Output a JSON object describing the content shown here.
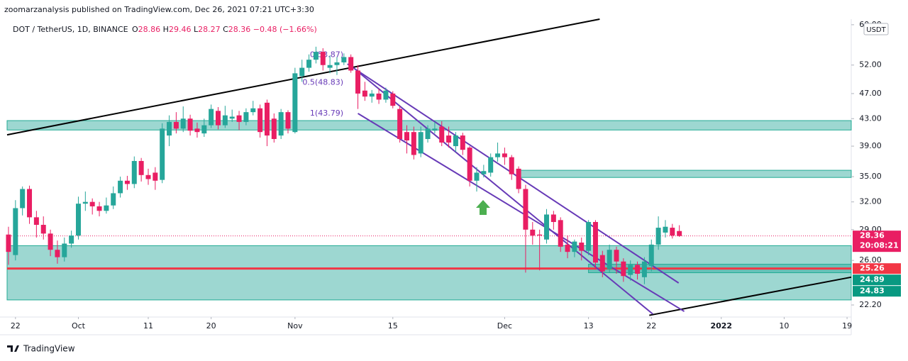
{
  "publisher_line": "zoomarzanalysis published on TradingView.com, Dec 26, 2021 07:21 UTC+3:30",
  "footer": "TradingView",
  "chart_data": {
    "type": "candlestick",
    "title": "DOT / TetherUS, 1D, BINANCE",
    "ohlc_header": [
      {
        "label": "O",
        "value": 28.86
      },
      {
        "label": "H",
        "value": 29.46
      },
      {
        "label": "L",
        "value": 28.27
      },
      {
        "label": "C",
        "value": 28.36
      }
    ],
    "change": {
      "value": -0.48,
      "label": "−0.48"
    },
    "change_pct": {
      "value": -1.66,
      "label": "(−1.66%)"
    },
    "currency": "USDT",
    "up_color": "#26a69a",
    "down_color": "#e91e63",
    "log_scale": true,
    "xlim": [
      -1.2,
      119.6
    ],
    "ylim": [
      21.27,
      61.2
    ],
    "xticks": [
      {
        "value": 0,
        "label": "22"
      },
      {
        "value": 9,
        "label": "Oct"
      },
      {
        "value": 19,
        "label": "11"
      },
      {
        "value": 28,
        "label": "20"
      },
      {
        "value": 40,
        "label": "Nov"
      },
      {
        "value": 54,
        "label": "15"
      },
      {
        "value": 70,
        "label": "Dec"
      },
      {
        "value": 82,
        "label": "13"
      },
      {
        "value": 91,
        "label": "22"
      },
      {
        "value": 101,
        "label": "2022"
      },
      {
        "value": 110,
        "label": "10"
      },
      {
        "value": 119,
        "label": "19"
      }
    ],
    "yticks": [
      {
        "value": 60,
        "label": "60.00"
      },
      {
        "value": 52,
        "label": "52.00"
      },
      {
        "value": 47,
        "label": "47.00"
      },
      {
        "value": 43,
        "label": "43.00"
      },
      {
        "value": 39,
        "label": "39.00"
      },
      {
        "value": 35,
        "label": "35.00"
      },
      {
        "value": 32,
        "label": "32.00"
      },
      {
        "value": 29,
        "label": "29.00"
      },
      {
        "value": 26,
        "label": "26.00"
      },
      {
        "value": 22.2,
        "label": "22.20"
      }
    ],
    "x": [
      -1,
      0,
      1,
      2,
      3,
      4,
      5,
      6,
      7,
      8,
      9,
      10,
      11,
      12,
      13,
      14,
      15,
      16,
      17,
      18,
      19,
      20,
      21,
      22,
      23,
      24,
      25,
      26,
      27,
      28,
      29,
      30,
      31,
      32,
      33,
      34,
      35,
      36,
      37,
      38,
      39,
      40,
      41,
      42,
      43,
      44,
      45,
      46,
      47,
      48,
      49,
      50,
      51,
      52,
      53,
      54,
      55,
      56,
      57,
      58,
      59,
      60,
      61,
      62,
      63,
      64,
      65,
      66,
      67,
      68,
      69,
      70,
      71,
      72,
      73,
      74,
      75,
      76,
      77,
      78,
      79,
      80,
      81,
      82,
      83,
      84,
      85,
      86,
      87,
      88,
      89,
      90,
      91,
      92,
      93,
      94,
      95
    ],
    "open": [
      28.5,
      26.5,
      31.3,
      33.5,
      30.3,
      29.5,
      28.6,
      27.0,
      26.3,
      27.6,
      28.4,
      31.8,
      32.0,
      31.5,
      31.0,
      31.6,
      33.0,
      34.5,
      34.1,
      37.0,
      35.2,
      35.5,
      34.6,
      40.5,
      42.5,
      41.5,
      43.0,
      41.5,
      40.8,
      42.0,
      44.2,
      42.0,
      43.0,
      43.5,
      42.5,
      44.0,
      44.6,
      45.5,
      43.0,
      40.5,
      44.0,
      41.0,
      50.0,
      51.5,
      53.0,
      54.5,
      51.5,
      52.0,
      52.5,
      53.5,
      51.0,
      47.5,
      46.5,
      47.0,
      46.0,
      47.0,
      44.5,
      41.0,
      41.0,
      38.0,
      40.0,
      41.2,
      41.8,
      40.5,
      39.0,
      40.5,
      38.8,
      34.5,
      35.3,
      35.5,
      37.5,
      38.0,
      37.5,
      36.0,
      33.5,
      29.0,
      28.5,
      28.0,
      30.6,
      30.0,
      27.5,
      26.8,
      27.7,
      26.9,
      29.8,
      26.5,
      25.2,
      27.0,
      25.9,
      24.7,
      25.6,
      24.5,
      25.5,
      27.5,
      28.7,
      29.2,
      28.86
    ],
    "high": [
      29.3,
      32.2,
      33.8,
      33.9,
      31.0,
      30.4,
      29.0,
      27.9,
      28.2,
      28.9,
      32.6,
      33.2,
      32.4,
      32.0,
      32.5,
      33.8,
      35.0,
      35.1,
      37.6,
      37.4,
      36.0,
      36.2,
      42.3,
      43.5,
      44.0,
      44.9,
      43.6,
      42.4,
      43.0,
      45.2,
      44.8,
      45.0,
      44.4,
      44.2,
      44.6,
      45.8,
      45.2,
      46.0,
      43.8,
      44.5,
      44.3,
      51.5,
      53.0,
      54.0,
      55.5,
      55.2,
      53.8,
      53.5,
      54.2,
      54.0,
      52.0,
      49.0,
      47.6,
      47.8,
      48.0,
      47.4,
      45.0,
      42.0,
      41.8,
      41.8,
      42.0,
      42.5,
      42.6,
      41.8,
      41.0,
      40.9,
      39.0,
      36.2,
      36.5,
      38.0,
      39.5,
      38.8,
      37.8,
      36.3,
      34.0,
      29.8,
      29.0,
      31.2,
      31.0,
      30.3,
      28.4,
      28.0,
      28.2,
      30.0,
      30.0,
      26.9,
      27.5,
      27.3,
      26.2,
      26.0,
      25.9,
      26.3,
      28.0,
      30.4,
      30.0,
      29.6,
      29.46
    ],
    "low": [
      25.6,
      26.0,
      30.5,
      29.6,
      28.2,
      28.0,
      26.4,
      25.7,
      25.9,
      27.2,
      28.0,
      31.0,
      30.6,
      30.4,
      30.7,
      31.2,
      32.5,
      33.4,
      33.6,
      34.4,
      34.0,
      33.4,
      34.2,
      39.0,
      40.8,
      41.0,
      40.5,
      40.2,
      40.3,
      41.6,
      41.4,
      41.6,
      42.5,
      41.3,
      42.0,
      43.5,
      40.2,
      39.0,
      39.5,
      40.0,
      40.8,
      40.8,
      49.0,
      50.8,
      52.3,
      51.0,
      50.5,
      50.2,
      52.0,
      50.6,
      44.5,
      45.8,
      45.5,
      45.3,
      45.5,
      44.6,
      39.5,
      38.0,
      37.2,
      37.5,
      39.5,
      40.8,
      39.0,
      38.8,
      38.2,
      37.8,
      33.8,
      33.2,
      34.9,
      35.0,
      36.9,
      36.5,
      34.6,
      33.0,
      24.9,
      27.5,
      25.1,
      27.6,
      29.0,
      26.8,
      26.2,
      26.3,
      26.0,
      26.5,
      25.2,
      24.5,
      24.9,
      24.8,
      24.1,
      24.2,
      24.3,
      23.9,
      25.0,
      27.0,
      28.2,
      28.1,
      28.27
    ],
    "close": [
      26.8,
      31.3,
      33.5,
      30.3,
      29.5,
      28.6,
      27.0,
      26.3,
      27.6,
      28.4,
      31.8,
      32.0,
      31.5,
      31.0,
      31.6,
      33.0,
      34.5,
      34.1,
      37.0,
      35.2,
      34.7,
      34.5,
      41.5,
      42.5,
      41.5,
      43.0,
      41.2,
      41.0,
      42.0,
      44.5,
      42.0,
      43.5,
      43.3,
      42.5,
      44.0,
      44.6,
      41.0,
      40.5,
      40.0,
      44.0,
      41.5,
      50.5,
      51.5,
      53.0,
      54.5,
      52.0,
      52.0,
      52.5,
      53.5,
      51.0,
      47.0,
      46.5,
      47.0,
      46.0,
      47.5,
      45.0,
      40.0,
      39.8,
      37.8,
      41.0,
      41.5,
      41.5,
      39.5,
      39.5,
      40.5,
      38.5,
      34.5,
      35.5,
      35.7,
      37.5,
      38.0,
      37.5,
      35.3,
      33.5,
      29.0,
      28.4,
      28.4,
      30.6,
      29.8,
      27.3,
      26.8,
      27.8,
      26.9,
      29.8,
      25.8,
      25.0,
      27.0,
      25.9,
      24.6,
      25.6,
      24.8,
      25.9,
      27.5,
      29.2,
      29.3,
      28.4,
      28.36
    ],
    "zones": [
      {
        "x": [
          -1.2,
          119.6
        ],
        "y": [
          42.7,
          41.3
        ]
      },
      {
        "x": [
          71.9,
          119.6
        ],
        "y": [
          35.8,
          34.9
        ]
      },
      {
        "x": [
          -1.2,
          119.6
        ],
        "y": [
          27.4,
          22.6
        ]
      },
      {
        "x": [
          82,
          119.6
        ],
        "y": [
          25.65,
          24.89
        ]
      }
    ],
    "trendlines": [
      {
        "color": "#000000",
        "x": [
          -1.2,
          83.6
        ],
        "y": [
          40.6,
          61.2
        ]
      },
      {
        "color": "#000000",
        "x": [
          90.7,
          119.6
        ],
        "y": [
          21.4,
          24.5
        ]
      },
      {
        "color": "#673ab7",
        "x": [
          47.5,
          94.9
        ],
        "y": [
          52.2,
          24.0
        ]
      },
      {
        "color": "#673ab7",
        "x": [
          49,
          91.2
        ],
        "y": [
          50.8,
          21.5
        ]
      },
      {
        "color": "#673ab7",
        "x": [
          49,
          95.7
        ],
        "y": [
          43.8,
          21.7
        ]
      }
    ],
    "fib_levels": [
      {
        "value": 53.87,
        "label": "0(53.87)"
      },
      {
        "value": 48.83,
        "label": "0.5(48.83)"
      },
      {
        "value": 43.79,
        "label": "1(43.79)"
      }
    ],
    "support_line": {
      "value": 25.26,
      "color": "#f23645"
    },
    "price_labels": [
      {
        "value": 28.36,
        "color": "#e91e63",
        "countdown": "20:08:21"
      },
      {
        "value": 25.26,
        "color": "#f23645"
      },
      {
        "value": 24.89,
        "color": "#089981"
      },
      {
        "value": 24.83,
        "color": "#089981"
      }
    ]
  }
}
